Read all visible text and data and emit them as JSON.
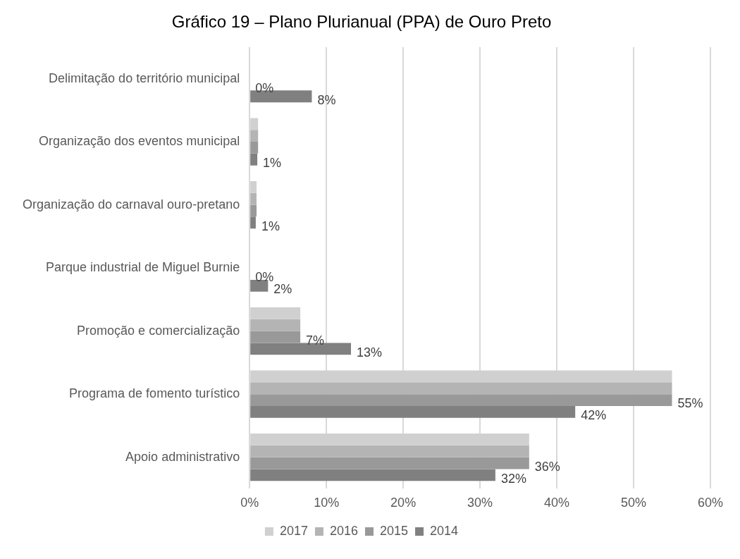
{
  "chart_data": {
    "type": "bar",
    "orientation": "horizontal",
    "title": "Gráfico 19 – Plano Plurianual (PPA) de Ouro Preto",
    "categories": [
      "Delimitação do território municipal",
      "Organização dos eventos municipal",
      "Organização do carnaval ouro-pretano",
      "Parque industrial de Miguel Burnie",
      "Promoção e comercialização",
      "Programa de fomento turístico",
      "Apoio administrativo"
    ],
    "series": [
      {
        "name": "2017",
        "color": "#d0d0d0",
        "values": [
          0,
          1.1,
          0.9,
          0,
          6.6,
          55,
          36.4
        ]
      },
      {
        "name": "2016",
        "color": "#b4b4b4",
        "values": [
          0,
          1.1,
          0.9,
          0,
          6.6,
          55,
          36.4
        ]
      },
      {
        "name": "2015",
        "color": "#999999",
        "values": [
          0,
          1.1,
          0.9,
          0,
          6.6,
          55,
          36.4
        ],
        "value_labels": [
          "0%",
          null,
          null,
          "0%",
          "7%",
          "55%",
          "36%"
        ]
      },
      {
        "name": "2014",
        "color": "#808080",
        "values": [
          8.1,
          1.0,
          0.8,
          2.4,
          13.2,
          42.4,
          32.0
        ],
        "value_labels": [
          "8%",
          "1%",
          "1%",
          "2%",
          "13%",
          "42%",
          "32%"
        ]
      }
    ],
    "xlim": [
      0,
      60
    ],
    "xticks": [
      {
        "value": 0,
        "label": "0%"
      },
      {
        "value": 10,
        "label": "10%"
      },
      {
        "value": 20,
        "label": "20%"
      },
      {
        "value": 30,
        "label": "30%"
      },
      {
        "value": 40,
        "label": "40%"
      },
      {
        "value": 50,
        "label": "50%"
      },
      {
        "value": 60,
        "label": "60%"
      }
    ],
    "grid": "x",
    "legend": "bottom"
  }
}
